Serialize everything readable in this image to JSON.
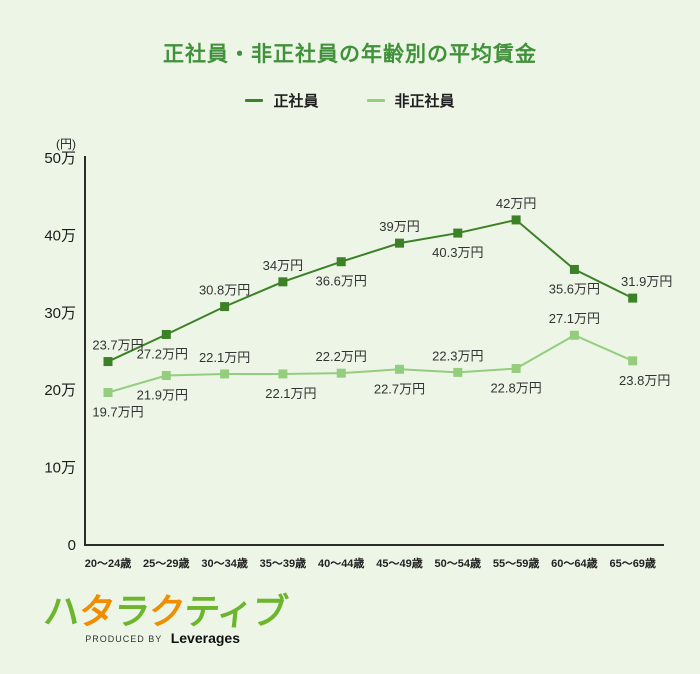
{
  "title": "正社員・非正社員の年齢別の平均賃金",
  "legend": [
    {
      "label": "正社員",
      "color": "#3c8127"
    },
    {
      "label": "非正社員",
      "color": "#94cd7d"
    }
  ],
  "y_axis": {
    "unit": "(円)",
    "ticks": [
      {
        "label": "50万",
        "value": 50
      },
      {
        "label": "40万",
        "value": 40
      },
      {
        "label": "30万",
        "value": 30
      },
      {
        "label": "20万",
        "value": 20
      },
      {
        "label": "10万",
        "value": 10
      },
      {
        "label": "0",
        "value": 0
      }
    ]
  },
  "chart_data": {
    "type": "line",
    "title": "正社員・非正社員の年齢別の平均賃金",
    "categories": [
      "20〜24歳",
      "25〜29歳",
      "30〜34歳",
      "35〜39歳",
      "40〜44歳",
      "45〜49歳",
      "50〜54歳",
      "55〜59歳",
      "60〜64歳",
      "65〜69歳"
    ],
    "unit": "万円",
    "ylim": [
      0,
      50
    ],
    "grid": false,
    "legend_position": "top",
    "series": [
      {
        "name": "正社員",
        "color": "#3c8127",
        "values": [
          23.7,
          27.2,
          30.8,
          34,
          36.6,
          39,
          40.3,
          42,
          35.6,
          31.9
        ],
        "labels": [
          "23.7万円",
          "27.2万円",
          "30.8万円",
          "34万円",
          "36.6万円",
          "39万円",
          "40.3万円",
          "42万円",
          "35.6万円",
          "31.9万円"
        ],
        "label_pos": [
          "above",
          "below",
          "above",
          "above",
          "below",
          "above",
          "below",
          "above",
          "below",
          "above"
        ],
        "label_dx": [
          10,
          -4,
          0,
          0,
          0,
          0,
          0,
          0,
          0,
          14
        ]
      },
      {
        "name": "非正社員",
        "color": "#94cd7d",
        "values": [
          19.7,
          21.9,
          22.1,
          22.1,
          22.2,
          22.7,
          22.3,
          22.8,
          27.1,
          23.8
        ],
        "labels": [
          "19.7万円",
          "21.9万円",
          "22.1万円",
          "22.1万円",
          "22.2万円",
          "22.7万円",
          "22.3万円",
          "22.8万円",
          "27.1万円",
          "23.8万円"
        ],
        "label_pos": [
          "below",
          "below",
          "above",
          "below",
          "above",
          "below",
          "above",
          "below",
          "above",
          "below"
        ],
        "label_dx": [
          10,
          -4,
          0,
          8,
          0,
          0,
          0,
          0,
          0,
          12
        ]
      }
    ]
  },
  "footer": {
    "logo_chars": [
      {
        "c": "ハ",
        "color": "#6cb52d"
      },
      {
        "c": "タ",
        "color": "#f18d00"
      },
      {
        "c": "ラ",
        "color": "#6cb52d"
      },
      {
        "c": "ク",
        "color": "#f18d00"
      },
      {
        "c": "テ",
        "color": "#6cb52d"
      },
      {
        "c": "ィ",
        "color": "#6cb52d"
      },
      {
        "c": "ブ",
        "color": "#6cb52d"
      }
    ],
    "produced_by": "PRODUCED BY",
    "company": "Leverages"
  }
}
